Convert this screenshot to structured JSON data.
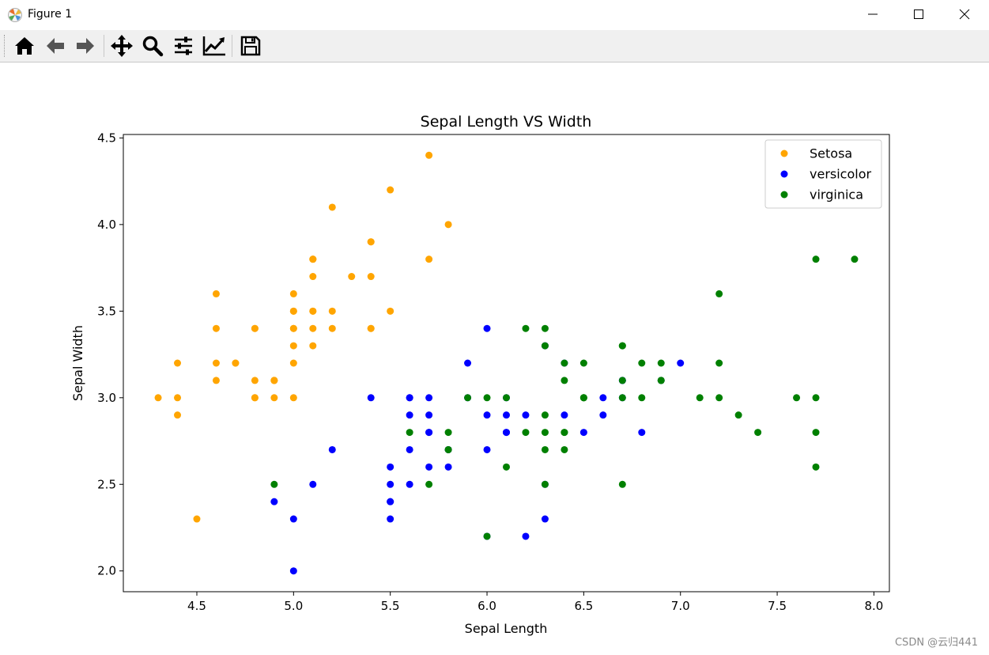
{
  "window": {
    "title": "Figure 1",
    "minimize_icon": "minimize-icon",
    "maximize_icon": "maximize-icon",
    "close_icon": "close-icon"
  },
  "toolbar": {
    "items": [
      "home-icon",
      "back-arrow-icon",
      "forward-arrow-icon",
      "pan-icon",
      "zoom-icon",
      "subplots-icon",
      "edit-axes-icon",
      "save-icon"
    ]
  },
  "watermark": "CSDN @云归441",
  "colors": {
    "setosa": "#ffa500",
    "versicolor": "#0000ff",
    "virginica": "#008000"
  },
  "chart_data": {
    "type": "scatter",
    "title": "Sepal Length VS Width",
    "xlabel": "Sepal Length",
    "ylabel": "Sepal Width",
    "xlim": [
      4.12,
      8.08
    ],
    "ylim": [
      1.88,
      4.52
    ],
    "xticks": [
      "4.5",
      "5.0",
      "5.5",
      "6.0",
      "6.5",
      "7.0",
      "7.5",
      "8.0"
    ],
    "yticks": [
      "2.0",
      "2.5",
      "3.0",
      "3.5",
      "4.0",
      "4.5"
    ],
    "legend_position": "top-right",
    "series": [
      {
        "name": "Setosa",
        "color": "#ffa500",
        "points": [
          [
            5.1,
            3.5
          ],
          [
            4.9,
            3.0
          ],
          [
            4.7,
            3.2
          ],
          [
            4.6,
            3.1
          ],
          [
            5.0,
            3.6
          ],
          [
            5.4,
            3.9
          ],
          [
            4.6,
            3.4
          ],
          [
            5.0,
            3.4
          ],
          [
            4.4,
            2.9
          ],
          [
            4.9,
            3.1
          ],
          [
            5.4,
            3.7
          ],
          [
            4.8,
            3.4
          ],
          [
            4.8,
            3.0
          ],
          [
            4.3,
            3.0
          ],
          [
            5.8,
            4.0
          ],
          [
            5.7,
            4.4
          ],
          [
            5.4,
            3.9
          ],
          [
            5.1,
            3.5
          ],
          [
            5.7,
            3.8
          ],
          [
            5.1,
            3.8
          ],
          [
            5.4,
            3.4
          ],
          [
            5.1,
            3.7
          ],
          [
            4.6,
            3.6
          ],
          [
            5.1,
            3.3
          ],
          [
            4.8,
            3.4
          ],
          [
            5.0,
            3.0
          ],
          [
            5.0,
            3.4
          ],
          [
            5.2,
            3.5
          ],
          [
            5.2,
            3.4
          ],
          [
            4.7,
            3.2
          ],
          [
            4.8,
            3.1
          ],
          [
            5.4,
            3.4
          ],
          [
            5.2,
            4.1
          ],
          [
            5.5,
            4.2
          ],
          [
            4.9,
            3.1
          ],
          [
            5.0,
            3.2
          ],
          [
            5.5,
            3.5
          ],
          [
            4.9,
            3.1
          ],
          [
            4.4,
            3.0
          ],
          [
            5.1,
            3.4
          ],
          [
            5.0,
            3.5
          ],
          [
            4.5,
            2.3
          ],
          [
            4.4,
            3.2
          ],
          [
            5.0,
            3.5
          ],
          [
            5.1,
            3.8
          ],
          [
            4.8,
            3.0
          ],
          [
            5.1,
            3.8
          ],
          [
            4.6,
            3.2
          ],
          [
            5.3,
            3.7
          ],
          [
            5.0,
            3.3
          ]
        ]
      },
      {
        "name": "versicolor",
        "color": "#0000ff",
        "points": [
          [
            7.0,
            3.2
          ],
          [
            6.4,
            3.2
          ],
          [
            6.9,
            3.1
          ],
          [
            5.5,
            2.3
          ],
          [
            6.5,
            2.8
          ],
          [
            5.7,
            2.8
          ],
          [
            6.3,
            3.3
          ],
          [
            4.9,
            2.4
          ],
          [
            6.6,
            2.9
          ],
          [
            5.2,
            2.7
          ],
          [
            5.0,
            2.0
          ],
          [
            5.9,
            3.0
          ],
          [
            6.0,
            2.2
          ],
          [
            6.1,
            2.9
          ],
          [
            5.6,
            2.9
          ],
          [
            6.7,
            3.1
          ],
          [
            5.6,
            3.0
          ],
          [
            5.8,
            2.7
          ],
          [
            6.2,
            2.2
          ],
          [
            5.6,
            2.5
          ],
          [
            5.9,
            3.2
          ],
          [
            6.1,
            2.8
          ],
          [
            6.3,
            2.5
          ],
          [
            6.1,
            2.8
          ],
          [
            6.4,
            2.9
          ],
          [
            6.6,
            3.0
          ],
          [
            6.8,
            2.8
          ],
          [
            6.7,
            3.0
          ],
          [
            6.0,
            2.9
          ],
          [
            5.7,
            2.6
          ],
          [
            5.5,
            2.4
          ],
          [
            5.5,
            2.4
          ],
          [
            5.8,
            2.7
          ],
          [
            6.0,
            2.7
          ],
          [
            5.4,
            3.0
          ],
          [
            6.0,
            3.4
          ],
          [
            6.7,
            3.1
          ],
          [
            6.3,
            2.3
          ],
          [
            5.6,
            3.0
          ],
          [
            5.5,
            2.5
          ],
          [
            5.5,
            2.6
          ],
          [
            6.1,
            3.0
          ],
          [
            5.8,
            2.6
          ],
          [
            5.0,
            2.3
          ],
          [
            5.6,
            2.7
          ],
          [
            5.7,
            3.0
          ],
          [
            5.7,
            2.9
          ],
          [
            6.2,
            2.9
          ],
          [
            5.1,
            2.5
          ],
          [
            5.7,
            2.8
          ]
        ]
      },
      {
        "name": "virginica",
        "color": "#008000",
        "points": [
          [
            6.3,
            3.3
          ],
          [
            5.8,
            2.7
          ],
          [
            7.1,
            3.0
          ],
          [
            6.3,
            2.9
          ],
          [
            6.5,
            3.0
          ],
          [
            7.6,
            3.0
          ],
          [
            4.9,
            2.5
          ],
          [
            7.3,
            2.9
          ],
          [
            6.7,
            2.5
          ],
          [
            7.2,
            3.6
          ],
          [
            6.5,
            3.2
          ],
          [
            6.4,
            2.7
          ],
          [
            6.8,
            3.0
          ],
          [
            5.7,
            2.5
          ],
          [
            5.8,
            2.8
          ],
          [
            6.4,
            3.2
          ],
          [
            6.5,
            3.0
          ],
          [
            7.7,
            3.8
          ],
          [
            7.7,
            2.6
          ],
          [
            6.0,
            2.2
          ],
          [
            6.9,
            3.2
          ],
          [
            5.6,
            2.8
          ],
          [
            7.7,
            2.8
          ],
          [
            6.3,
            2.7
          ],
          [
            6.7,
            3.3
          ],
          [
            7.2,
            3.2
          ],
          [
            6.2,
            2.8
          ],
          [
            6.1,
            3.0
          ],
          [
            6.4,
            2.8
          ],
          [
            7.2,
            3.0
          ],
          [
            7.4,
            2.8
          ],
          [
            7.9,
            3.8
          ],
          [
            6.4,
            2.8
          ],
          [
            6.3,
            2.8
          ],
          [
            6.1,
            2.6
          ],
          [
            7.7,
            3.0
          ],
          [
            6.3,
            3.4
          ],
          [
            6.4,
            3.1
          ],
          [
            6.0,
            3.0
          ],
          [
            6.9,
            3.1
          ],
          [
            6.7,
            3.1
          ],
          [
            6.9,
            3.1
          ],
          [
            5.8,
            2.7
          ],
          [
            6.8,
            3.2
          ],
          [
            6.7,
            3.3
          ],
          [
            6.7,
            3.0
          ],
          [
            6.3,
            2.5
          ],
          [
            6.5,
            3.0
          ],
          [
            6.2,
            3.4
          ],
          [
            5.9,
            3.0
          ]
        ]
      }
    ]
  }
}
